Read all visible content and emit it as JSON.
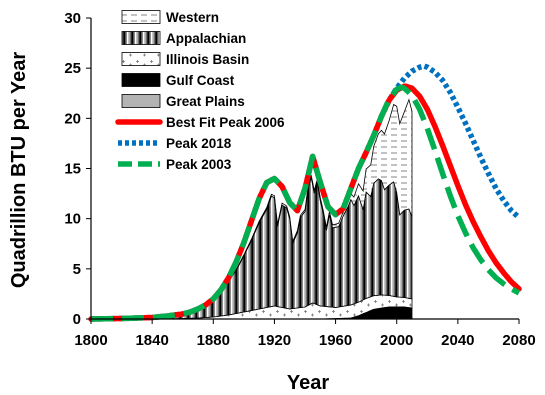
{
  "chart_data": {
    "type": "area",
    "xlabel": "Year",
    "ylabel": "Quadrillion BTU per Year",
    "xlim": [
      1800,
      2080
    ],
    "ylim": [
      0,
      30
    ],
    "x_ticks": [
      1800,
      1840,
      1880,
      1920,
      1960,
      2000,
      2040,
      2080
    ],
    "y_ticks": [
      0,
      5,
      10,
      15,
      20,
      25,
      30
    ],
    "legend_position": "top-left",
    "grid": false,
    "legend": [
      "Western",
      "Appalachian",
      "Illinois Basin",
      "Gulf Coast",
      "Great Plains",
      "Best Fit Peak 2006",
      "Peak 2018",
      "Peak 2003"
    ],
    "stacked_series": [
      {
        "name": "Great Plains",
        "color": "#b3b3b3",
        "x": [
          1800,
          1950,
          1970,
          1980,
          1990,
          2000,
          2010
        ],
        "values": [
          0,
          0,
          0,
          0.05,
          0.1,
          0.1,
          0.1
        ]
      },
      {
        "name": "Gulf Coast",
        "color": "#000000",
        "x": [
          1800,
          1950,
          1970,
          1975,
          1980,
          1985,
          1990,
          1995,
          2000,
          2005,
          2010
        ],
        "values": [
          0,
          0,
          0.1,
          0.3,
          0.6,
          0.9,
          1.0,
          1.1,
          1.1,
          1.1,
          1.0
        ]
      },
      {
        "name": "Illinois Basin",
        "color": "#ffffff",
        "x": [
          1800,
          1850,
          1860,
          1870,
          1880,
          1890,
          1900,
          1910,
          1920,
          1930,
          1940,
          1945,
          1950,
          1960,
          1970,
          1980,
          1990,
          2000,
          2010
        ],
        "values": [
          0,
          0.02,
          0.05,
          0.1,
          0.2,
          0.4,
          0.7,
          1.0,
          1.3,
          1.0,
          1.2,
          1.6,
          1.3,
          1.1,
          1.3,
          1.4,
          1.3,
          1.0,
          0.9
        ]
      },
      {
        "name": "Appalachian",
        "color": "#000000",
        "x": [
          1800,
          1810,
          1820,
          1830,
          1840,
          1850,
          1860,
          1865,
          1870,
          1875,
          1880,
          1885,
          1890,
          1895,
          1900,
          1905,
          1910,
          1915,
          1918,
          1920,
          1922,
          1925,
          1928,
          1930,
          1932,
          1935,
          1937,
          1940,
          1942,
          1944,
          1946,
          1948,
          1950,
          1952,
          1954,
          1956,
          1958,
          1960,
          1962,
          1965,
          1968,
          1970,
          1972,
          1975,
          1978,
          1980,
          1983,
          1985,
          1988,
          1990,
          1992,
          1995,
          1998,
          2000,
          2002,
          2005,
          2008,
          2010
        ],
        "values": [
          0.05,
          0.1,
          0.15,
          0.2,
          0.3,
          0.4,
          0.6,
          0.8,
          1.0,
          1.3,
          1.8,
          2.5,
          3.4,
          4.3,
          5.6,
          7.0,
          8.6,
          9.8,
          11.0,
          10.8,
          8.0,
          10.2,
          10.0,
          9.0,
          6.5,
          7.5,
          9.0,
          9.5,
          11.6,
          12.6,
          11.0,
          12.2,
          10.5,
          9.2,
          7.6,
          9.2,
          7.9,
          8.0,
          8.0,
          9.0,
          9.8,
          10.5,
          9.8,
          10.6,
          9.0,
          10.6,
          10.0,
          11.2,
          11.6,
          11.4,
          10.5,
          11.0,
          11.4,
          10.4,
          8.2,
          8.7,
          8.9,
          8.2
        ]
      },
      {
        "name": "Western",
        "color": "#ffffff",
        "x": [
          1800,
          1860,
          1880,
          1900,
          1920,
          1940,
          1950,
          1960,
          1965,
          1970,
          1975,
          1980,
          1985,
          1990,
          1995,
          2000,
          2005,
          2008,
          2010
        ],
        "values": [
          0,
          0,
          0.05,
          0.1,
          0.2,
          0.2,
          0.3,
          0.3,
          0.4,
          0.6,
          1.2,
          2.3,
          3.7,
          5.0,
          6.4,
          8.6,
          9.8,
          10.9,
          10.5
        ]
      }
    ],
    "line_series": [
      {
        "name": "Best Fit Peak 2006",
        "color": "#ff0000",
        "style": "solid",
        "x": [
          1800,
          1820,
          1840,
          1850,
          1860,
          1865,
          1870,
          1875,
          1880,
          1885,
          1890,
          1895,
          1900,
          1905,
          1910,
          1915,
          1920,
          1925,
          1930,
          1935,
          1940,
          1945,
          1950,
          1955,
          1960,
          1965,
          1970,
          1975,
          1980,
          1985,
          1990,
          1995,
          2000,
          2005,
          2006,
          2010,
          2015,
          2020,
          2025,
          2030,
          2035,
          2040,
          2045,
          2050,
          2055,
          2060,
          2065,
          2070,
          2075,
          2080
        ],
        "values": [
          0,
          0.05,
          0.15,
          0.3,
          0.5,
          0.7,
          1.0,
          1.4,
          2.0,
          2.9,
          4.1,
          5.7,
          7.6,
          9.8,
          12.0,
          13.6,
          14.0,
          13.2,
          11.6,
          10.8,
          13.0,
          16.2,
          13.6,
          11.2,
          10.4,
          11.0,
          13.0,
          15.0,
          16.6,
          18.3,
          20.2,
          21.8,
          22.8,
          23.2,
          23.2,
          23.0,
          22.2,
          20.9,
          19.2,
          17.3,
          15.3,
          13.3,
          11.4,
          9.7,
          8.2,
          6.8,
          5.6,
          4.6,
          3.7,
          3.0
        ]
      },
      {
        "name": "Peak 2018",
        "color": "#0070c0",
        "style": "dotted",
        "x": [
          1800,
          1820,
          1840,
          1850,
          1860,
          1865,
          1870,
          1875,
          1880,
          1885,
          1890,
          1895,
          1900,
          1905,
          1910,
          1915,
          1920,
          1925,
          1930,
          1935,
          1940,
          1945,
          1950,
          1955,
          1960,
          1965,
          1970,
          1975,
          1980,
          1985,
          1990,
          1995,
          2000,
          2005,
          2010,
          2015,
          2018,
          2020,
          2025,
          2030,
          2035,
          2040,
          2045,
          2050,
          2055,
          2060,
          2065,
          2070,
          2075,
          2080
        ],
        "values": [
          0,
          0.05,
          0.15,
          0.3,
          0.5,
          0.7,
          1.0,
          1.4,
          2.0,
          2.9,
          4.1,
          5.7,
          7.6,
          9.8,
          12.0,
          13.6,
          14.0,
          13.2,
          11.6,
          10.8,
          13.0,
          16.2,
          13.6,
          11.2,
          10.4,
          11.0,
          13.0,
          15.0,
          16.6,
          18.3,
          20.2,
          21.8,
          23.0,
          24.0,
          24.7,
          25.1,
          25.2,
          25.1,
          24.6,
          23.8,
          22.6,
          21.1,
          19.5,
          17.8,
          16.1,
          14.5,
          13.0,
          11.8,
          10.8,
          10.1
        ]
      },
      {
        "name": "Peak 2003",
        "color": "#00b050",
        "style": "dashed",
        "x": [
          1800,
          1820,
          1840,
          1850,
          1860,
          1865,
          1870,
          1875,
          1880,
          1885,
          1890,
          1895,
          1900,
          1905,
          1910,
          1915,
          1920,
          1925,
          1930,
          1935,
          1940,
          1945,
          1950,
          1955,
          1960,
          1965,
          1970,
          1975,
          1980,
          1985,
          1990,
          1995,
          2000,
          2003,
          2005,
          2010,
          2015,
          2020,
          2025,
          2030,
          2035,
          2040,
          2045,
          2050,
          2055,
          2060,
          2065,
          2070,
          2075,
          2080
        ],
        "values": [
          0,
          0.05,
          0.15,
          0.3,
          0.5,
          0.7,
          1.0,
          1.4,
          2.0,
          2.9,
          4.1,
          5.7,
          7.6,
          9.8,
          12.0,
          13.6,
          14.0,
          13.2,
          11.6,
          10.8,
          13.0,
          16.2,
          13.6,
          11.2,
          10.4,
          11.0,
          13.0,
          15.0,
          16.6,
          18.3,
          20.2,
          21.9,
          22.9,
          23.1,
          23.0,
          22.3,
          20.9,
          19.0,
          16.8,
          14.5,
          12.3,
          10.3,
          8.6,
          7.1,
          5.9,
          4.9,
          4.1,
          3.5,
          3.0,
          2.6
        ]
      }
    ]
  }
}
